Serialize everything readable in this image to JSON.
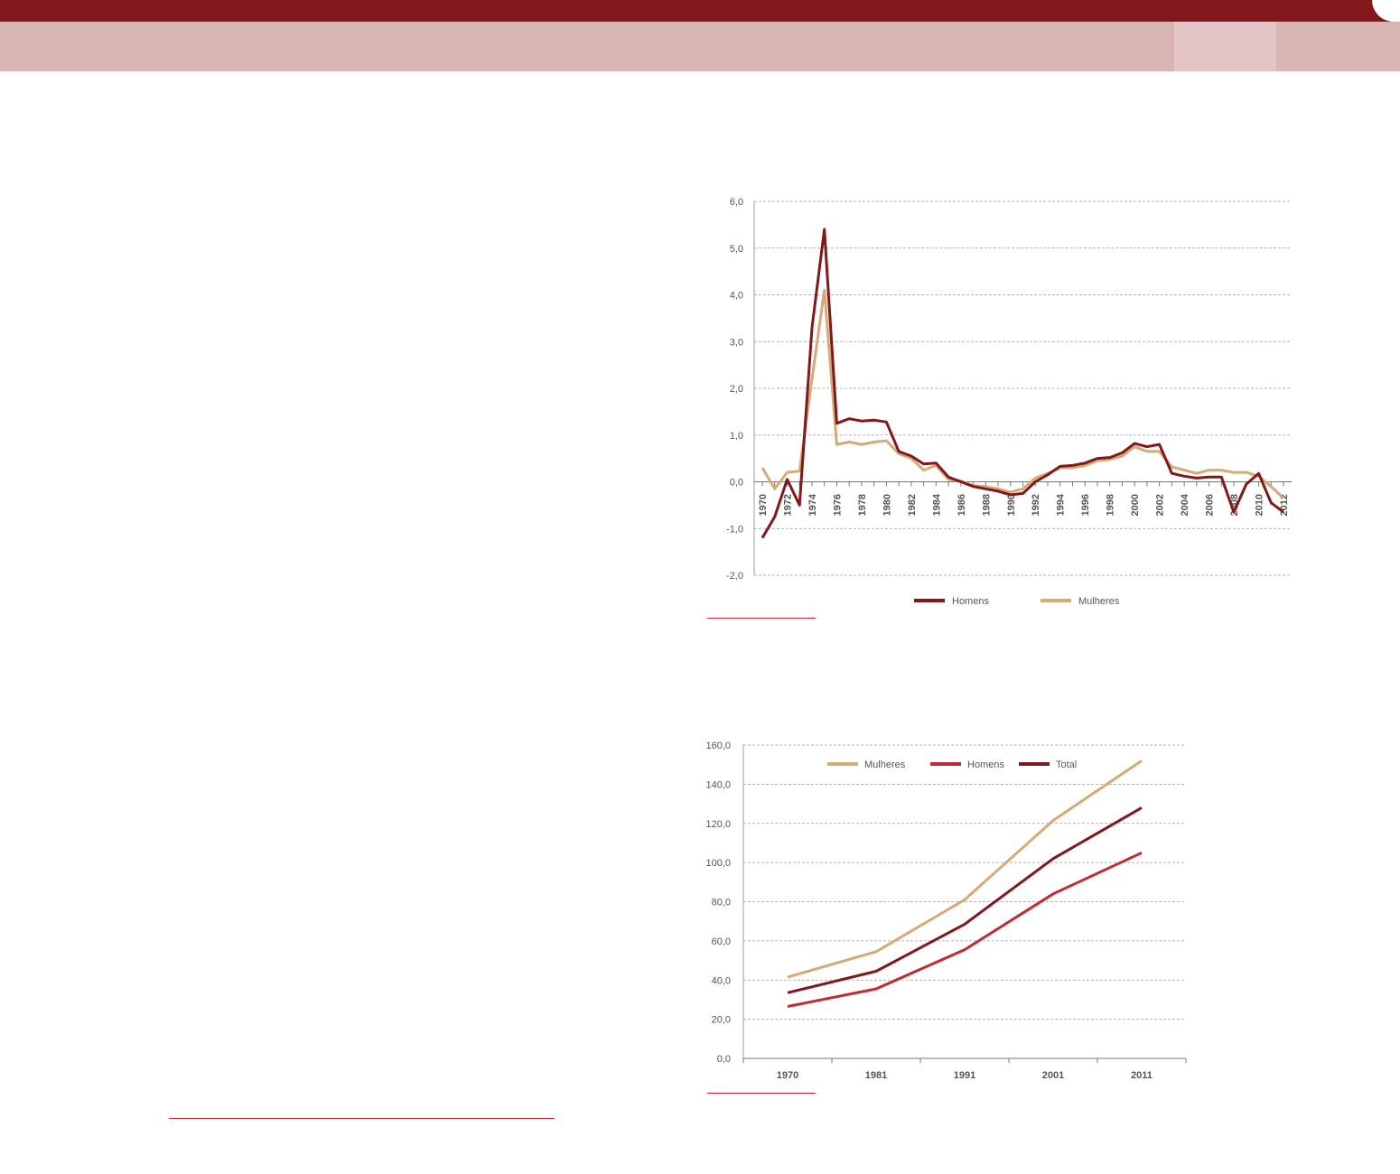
{
  "colors": {
    "header_dark": "#82171c",
    "header_light": "#d8b4b3",
    "header_tab": "#e2c5c4",
    "rule": "#c22a32",
    "grid": "#9b9b9b",
    "axis_text": "#555555"
  },
  "chart_data": [
    {
      "type": "line",
      "x": [
        1970,
        1971,
        1972,
        1973,
        1974,
        1975,
        1976,
        1977,
        1978,
        1979,
        1980,
        1981,
        1982,
        1983,
        1984,
        1985,
        1986,
        1987,
        1988,
        1989,
        1990,
        1991,
        1992,
        1993,
        1994,
        1995,
        1996,
        1997,
        1998,
        1999,
        2000,
        2001,
        2002,
        2003,
        2004,
        2005,
        2006,
        2007,
        2008,
        2009,
        2010,
        2011,
        2012
      ],
      "x_tick_labels": [
        "1970",
        "1972",
        "1974",
        "1976",
        "1978",
        "1980",
        "1982",
        "1984",
        "1986",
        "1988",
        "1990",
        "1992",
        "1994",
        "1996",
        "1998",
        "2000",
        "2002",
        "2004",
        "2006",
        "2008",
        "2010",
        "2012"
      ],
      "y_tick_labels": [
        "-2,0",
        "-1,0",
        "0,0",
        "1,0",
        "2,0",
        "3,0",
        "4,0",
        "5,0",
        "6,0"
      ],
      "ylim": [
        -2,
        6
      ],
      "grid": true,
      "legend_position": "bottom",
      "series": [
        {
          "name": "Homens",
          "color": "#82171c",
          "values": [
            -1.2,
            -0.75,
            0.05,
            -0.5,
            3.3,
            5.4,
            1.25,
            1.35,
            1.3,
            1.32,
            1.28,
            0.65,
            0.55,
            0.38,
            0.4,
            0.1,
            0.0,
            -0.1,
            -0.15,
            -0.2,
            -0.28,
            -0.25,
            0.0,
            0.15,
            0.33,
            0.35,
            0.4,
            0.5,
            0.52,
            0.62,
            0.82,
            0.75,
            0.8,
            0.18,
            0.12,
            0.08,
            0.1,
            0.1,
            -0.65,
            -0.05,
            0.18,
            -0.45,
            -0.65
          ]
        },
        {
          "name": "Mulheres",
          "color": "#d4aa76",
          "values": [
            0.3,
            -0.15,
            0.2,
            0.23,
            2.2,
            4.1,
            0.8,
            0.85,
            0.8,
            0.85,
            0.88,
            0.6,
            0.5,
            0.25,
            0.35,
            0.05,
            0.02,
            -0.08,
            -0.1,
            -0.15,
            -0.22,
            -0.15,
            0.08,
            0.18,
            0.3,
            0.3,
            0.35,
            0.45,
            0.48,
            0.55,
            0.75,
            0.65,
            0.65,
            0.32,
            0.25,
            0.18,
            0.25,
            0.25,
            0.2,
            0.2,
            0.12,
            -0.1,
            -0.35
          ]
        }
      ]
    },
    {
      "type": "line",
      "categories": [
        "1970",
        "1981",
        "1991",
        "2001",
        "2011"
      ],
      "y_tick_labels": [
        "0,0",
        "20,0",
        "40,0",
        "60,0",
        "80,0",
        "100,0",
        "120,0",
        "140,0",
        "160,0"
      ],
      "ylim": [
        0,
        160
      ],
      "grid": true,
      "legend_position": "top",
      "series": [
        {
          "name": "Mulheres",
          "color": "#d4aa76",
          "values": [
            41.5,
            54.5,
            81.0,
            121.5,
            152.0
          ]
        },
        {
          "name": "Homens",
          "color": "#c22a32",
          "values": [
            26.5,
            35.5,
            55.5,
            84.0,
            105.0
          ]
        },
        {
          "name": "Total",
          "color": "#82171c",
          "values": [
            33.5,
            44.5,
            68.5,
            102.0,
            128.0
          ]
        }
      ]
    }
  ]
}
